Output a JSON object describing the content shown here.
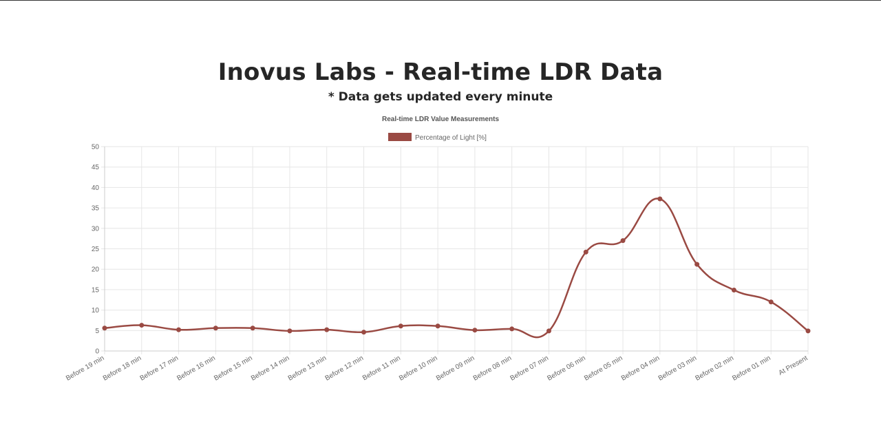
{
  "header": {
    "title": "Inovus Labs - Real-time LDR Data",
    "subtitle": "* Data gets updated every minute"
  },
  "colors": {
    "series": "#9a4a43",
    "grid": "#e6e6e6",
    "text": "#666666",
    "title_text": "#262626"
  },
  "chart_data": {
    "type": "line",
    "title": "Real-time LDR Value Measurements",
    "legend_position": "top",
    "grid": true,
    "ylim": [
      0,
      50
    ],
    "yticks": [
      0,
      5,
      10,
      15,
      20,
      25,
      30,
      35,
      40,
      45,
      50
    ],
    "categories": [
      "Before 19 min",
      "Before 18 min",
      "Before 17 min",
      "Before 16 min",
      "Before 15 min",
      "Before 14 min",
      "Before 13 min",
      "Before 12 min",
      "Before 11 min",
      "Before 10 min",
      "Before 09 min",
      "Before 08 min",
      "Before 07 min",
      "Before 06 min",
      "Before 05 min",
      "Before 04 min",
      "Before 03 min",
      "Before 02 min",
      "Before 01 min",
      "At Present"
    ],
    "series": [
      {
        "name": "Percentage of Light [%]",
        "values": [
          5.6,
          6.3,
          5.2,
          5.6,
          5.6,
          4.9,
          5.2,
          4.6,
          6.1,
          6.1,
          5.1,
          5.4,
          4.9,
          24.2,
          27.0,
          37.2,
          21.2,
          14.9,
          12.0,
          4.9
        ]
      }
    ]
  }
}
